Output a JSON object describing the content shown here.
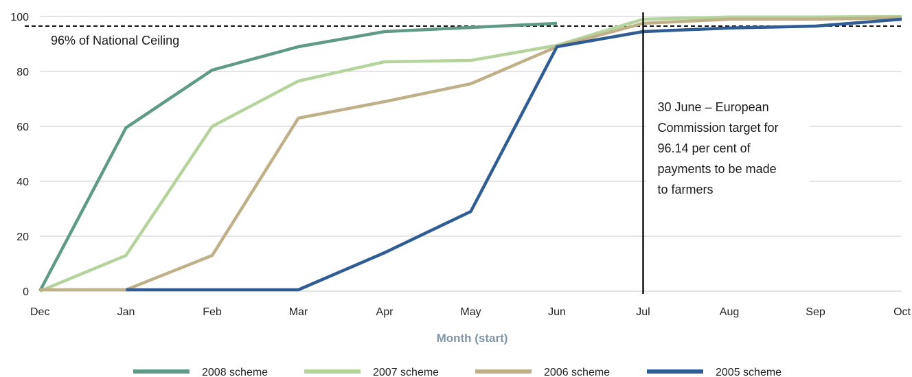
{
  "chart_data": {
    "type": "line",
    "categories": [
      "Dec",
      "Jan",
      "Feb",
      "Mar",
      "Apr",
      "May",
      "Jun",
      "Jul",
      "Aug",
      "Sep",
      "Oct"
    ],
    "xlabel": "Month (start)",
    "ylabel": "",
    "ylim": [
      0,
      100
    ],
    "yticks": [
      0,
      20,
      40,
      60,
      80,
      100
    ],
    "grid": "horizontal",
    "legend_position": "bottom",
    "series": [
      {
        "name": "2008 scheme",
        "color": "#5e9a87",
        "values": [
          0,
          59.5,
          80.5,
          89,
          94.5,
          96,
          97.5,
          null,
          null,
          null,
          null
        ]
      },
      {
        "name": "2007 scheme",
        "color": "#b5d49c",
        "values": [
          0,
          13,
          60,
          76.5,
          83.5,
          84,
          89.5,
          99,
          99.8,
          99.8,
          100
        ]
      },
      {
        "name": "2006 scheme",
        "color": "#bfb088",
        "values": [
          0.5,
          0.5,
          13,
          63,
          69,
          75.5,
          89,
          97.5,
          99,
          99,
          99.5
        ]
      },
      {
        "name": "2005 scheme",
        "color": "#2e5c93",
        "values": [
          null,
          0.5,
          0.5,
          0.5,
          14,
          29,
          89,
          94.5,
          95.8,
          96.5,
          99
        ]
      }
    ],
    "reference_line": {
      "value": 96.5,
      "label": "96% of National Ceiling"
    },
    "vertical_marker": {
      "category": "Jul",
      "label_lines": [
        "30 June – European",
        "Commission target for",
        "96.14 per cent of",
        "payments to be made",
        "to farmers"
      ]
    }
  }
}
